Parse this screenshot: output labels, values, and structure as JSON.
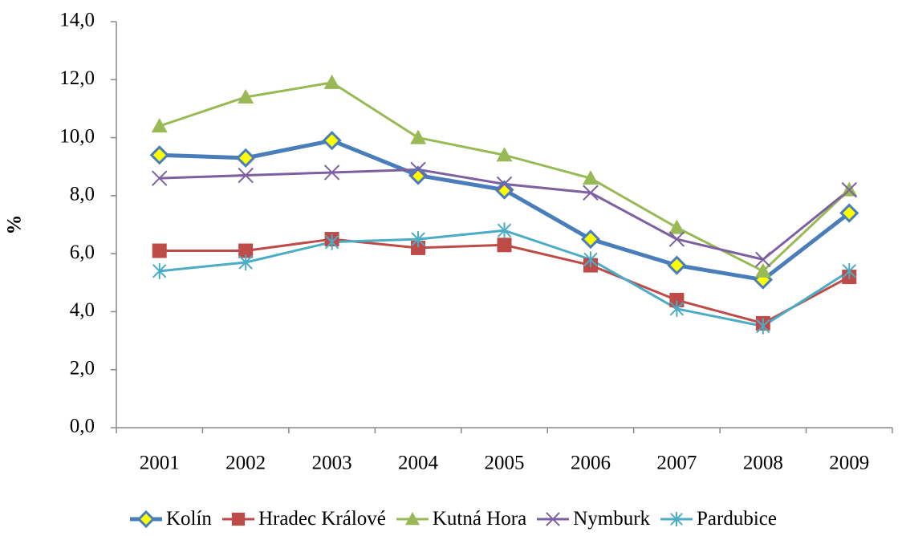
{
  "chart_data": {
    "type": "line",
    "y_label": "%",
    "categories": [
      "2001",
      "2002",
      "2003",
      "2004",
      "2005",
      "2006",
      "2007",
      "2008",
      "2009"
    ],
    "ylim": [
      0,
      14
    ],
    "yticks": [
      {
        "value": 0,
        "label": "0,0"
      },
      {
        "value": 2,
        "label": "2,0"
      },
      {
        "value": 4,
        "label": "4,0"
      },
      {
        "value": 6,
        "label": "6,0"
      },
      {
        "value": 8,
        "label": "8,0"
      },
      {
        "value": 10,
        "label": "10,0"
      },
      {
        "value": 12,
        "label": "12,0"
      },
      {
        "value": 14,
        "label": "14,0"
      }
    ],
    "grid": false,
    "legend": "bottom",
    "series": [
      {
        "name": "Kolín",
        "color": "#4a7ebb",
        "marker": "diamond",
        "marker_fill": "#ffff00",
        "values": [
          9.4,
          9.3,
          9.9,
          8.7,
          8.2,
          6.5,
          5.6,
          5.1,
          7.4
        ]
      },
      {
        "name": "Hradec Králové",
        "color": "#be4b48",
        "marker": "square",
        "values": [
          6.1,
          6.1,
          6.5,
          6.2,
          6.3,
          5.6,
          4.4,
          3.6,
          5.2
        ]
      },
      {
        "name": "Kutná Hora",
        "color": "#98b954",
        "marker": "triangle",
        "values": [
          10.4,
          11.4,
          11.9,
          10.0,
          9.4,
          8.6,
          6.9,
          5.4,
          8.2
        ]
      },
      {
        "name": "Nymburk",
        "color": "#7d60a0",
        "marker": "x",
        "values": [
          8.6,
          8.7,
          8.8,
          8.9,
          8.4,
          8.1,
          6.5,
          5.8,
          8.2
        ]
      },
      {
        "name": "Pardubice",
        "color": "#4bacc6",
        "marker": "star",
        "values": [
          5.4,
          5.7,
          6.4,
          6.5,
          6.8,
          5.8,
          4.1,
          3.5,
          5.4
        ]
      }
    ]
  }
}
